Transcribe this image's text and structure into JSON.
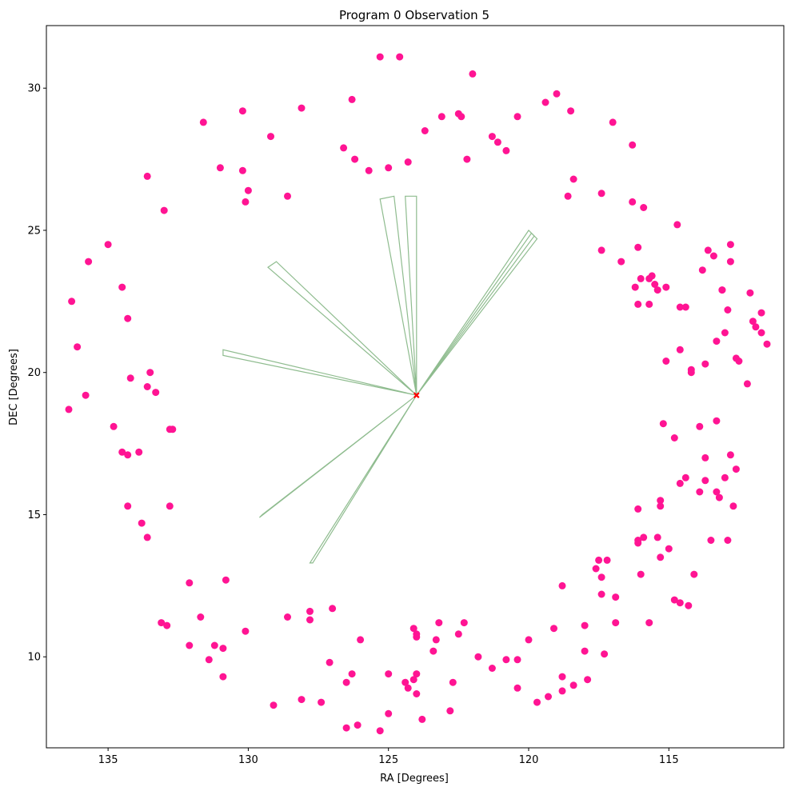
{
  "chart_data": {
    "type": "scatter",
    "title": "Program 0 Observation 5",
    "xlabel": "RA [Degrees]",
    "ylabel": "DEC [Degrees]",
    "xlim": [
      137.2,
      110.9
    ],
    "ylim": [
      6.8,
      32.2
    ],
    "x_inverted": true,
    "grid": false,
    "xticks": [
      135,
      130,
      125,
      120,
      115
    ],
    "yticks": [
      10,
      15,
      20,
      25,
      30
    ],
    "colors": {
      "points": "#ff1493",
      "fov": "#8fbc8f",
      "target": "#ff0000"
    },
    "target": {
      "ra": 124.0,
      "dec": 19.2
    },
    "points": [
      [
        136.4,
        18.7
      ],
      [
        136.3,
        22.5
      ],
      [
        136.1,
        20.9
      ],
      [
        135.8,
        19.2
      ],
      [
        135.7,
        23.9
      ],
      [
        135.0,
        24.5
      ],
      [
        134.8,
        18.1
      ],
      [
        134.5,
        23.0
      ],
      [
        134.5,
        17.2
      ],
      [
        134.3,
        17.1
      ],
      [
        134.3,
        21.9
      ],
      [
        134.3,
        15.3
      ],
      [
        134.2,
        19.8
      ],
      [
        133.9,
        17.2
      ],
      [
        133.8,
        14.7
      ],
      [
        133.6,
        14.2
      ],
      [
        133.6,
        19.5
      ],
      [
        133.5,
        20.0
      ],
      [
        133.6,
        26.9
      ],
      [
        133.3,
        19.3
      ],
      [
        132.8,
        15.3
      ],
      [
        132.8,
        18.0
      ],
      [
        132.7,
        18.0
      ],
      [
        133.0,
        25.7
      ],
      [
        133.1,
        11.2
      ],
      [
        132.9,
        11.1
      ],
      [
        132.1,
        12.6
      ],
      [
        132.1,
        10.4
      ],
      [
        131.7,
        11.4
      ],
      [
        131.6,
        28.8
      ],
      [
        131.4,
        9.9
      ],
      [
        131.2,
        10.4
      ],
      [
        130.9,
        10.3
      ],
      [
        130.9,
        9.3
      ],
      [
        131.0,
        27.2
      ],
      [
        130.8,
        12.7
      ],
      [
        130.2,
        29.2
      ],
      [
        130.2,
        27.1
      ],
      [
        130.0,
        26.4
      ],
      [
        130.1,
        26.0
      ],
      [
        130.1,
        10.9
      ],
      [
        129.2,
        28.3
      ],
      [
        129.1,
        8.3
      ],
      [
        128.6,
        11.4
      ],
      [
        128.6,
        26.2
      ],
      [
        128.1,
        29.3
      ],
      [
        128.1,
        8.5
      ],
      [
        127.8,
        11.6
      ],
      [
        127.8,
        11.3
      ],
      [
        127.4,
        8.4
      ],
      [
        127.1,
        9.8
      ],
      [
        127.0,
        11.7
      ],
      [
        126.6,
        27.9
      ],
      [
        126.5,
        9.1
      ],
      [
        126.5,
        7.5
      ],
      [
        126.3,
        29.6
      ],
      [
        126.3,
        9.4
      ],
      [
        126.2,
        27.5
      ],
      [
        126.1,
        7.6
      ],
      [
        126.0,
        10.6
      ],
      [
        125.7,
        27.1
      ],
      [
        125.3,
        31.1
      ],
      [
        125.3,
        7.4
      ],
      [
        125.0,
        27.2
      ],
      [
        125.0,
        9.4
      ],
      [
        125.0,
        8.0
      ],
      [
        124.6,
        31.1
      ],
      [
        124.3,
        27.4
      ],
      [
        124.4,
        9.1
      ],
      [
        124.3,
        8.9
      ],
      [
        124.1,
        11.0
      ],
      [
        124.1,
        9.2
      ],
      [
        124.0,
        10.7
      ],
      [
        124.0,
        9.4
      ],
      [
        124.0,
        8.7
      ],
      [
        124.0,
        10.8
      ],
      [
        123.8,
        7.8
      ],
      [
        123.7,
        28.5
      ],
      [
        123.4,
        10.2
      ],
      [
        123.3,
        10.6
      ],
      [
        123.2,
        11.2
      ],
      [
        123.1,
        29.0
      ],
      [
        122.8,
        8.1
      ],
      [
        122.7,
        9.1
      ],
      [
        122.5,
        29.1
      ],
      [
        122.4,
        29.0
      ],
      [
        122.5,
        10.8
      ],
      [
        122.3,
        11.2
      ],
      [
        122.2,
        27.5
      ],
      [
        122.0,
        30.5
      ],
      [
        121.8,
        10.0
      ],
      [
        121.3,
        28.3
      ],
      [
        121.3,
        9.6
      ],
      [
        121.1,
        28.1
      ],
      [
        120.8,
        27.8
      ],
      [
        120.8,
        9.9
      ],
      [
        120.4,
        29.0
      ],
      [
        120.4,
        9.9
      ],
      [
        120.4,
        8.9
      ],
      [
        120.0,
        10.6
      ],
      [
        119.7,
        8.4
      ],
      [
        119.4,
        29.5
      ],
      [
        119.3,
        8.6
      ],
      [
        119.1,
        11.0
      ],
      [
        119.0,
        29.8
      ],
      [
        118.8,
        8.8
      ],
      [
        118.8,
        12.5
      ],
      [
        118.8,
        9.3
      ],
      [
        118.6,
        26.2
      ],
      [
        118.5,
        29.2
      ],
      [
        118.4,
        26.8
      ],
      [
        118.4,
        9.0
      ],
      [
        118.0,
        11.1
      ],
      [
        118.0,
        10.2
      ],
      [
        117.9,
        9.2
      ],
      [
        117.6,
        13.1
      ],
      [
        117.5,
        13.4
      ],
      [
        117.4,
        26.3
      ],
      [
        117.4,
        24.3
      ],
      [
        117.4,
        12.8
      ],
      [
        117.4,
        12.2
      ],
      [
        117.3,
        10.1
      ],
      [
        117.2,
        13.4
      ],
      [
        117.0,
        28.8
      ],
      [
        116.9,
        12.1
      ],
      [
        116.9,
        11.2
      ],
      [
        116.7,
        23.9
      ],
      [
        116.3,
        28.0
      ],
      [
        116.3,
        26.0
      ],
      [
        116.2,
        23.0
      ],
      [
        116.1,
        22.4
      ],
      [
        116.1,
        24.4
      ],
      [
        116.0,
        23.3
      ],
      [
        116.1,
        15.2
      ],
      [
        116.1,
        14.1
      ],
      [
        116.1,
        14.0
      ],
      [
        116.0,
        12.9
      ],
      [
        115.9,
        14.2
      ],
      [
        115.9,
        25.8
      ],
      [
        115.7,
        23.3
      ],
      [
        115.6,
        23.4
      ],
      [
        115.5,
        23.1
      ],
      [
        115.7,
        22.4
      ],
      [
        115.7,
        11.2
      ],
      [
        115.4,
        22.9
      ],
      [
        115.4,
        14.2
      ],
      [
        115.3,
        15.5
      ],
      [
        115.3,
        15.3
      ],
      [
        115.3,
        13.5
      ],
      [
        115.2,
        18.2
      ],
      [
        115.1,
        23.0
      ],
      [
        115.1,
        20.4
      ],
      [
        115.0,
        13.8
      ],
      [
        114.8,
        12.0
      ],
      [
        114.8,
        17.7
      ],
      [
        114.7,
        25.2
      ],
      [
        114.6,
        11.9
      ],
      [
        114.6,
        20.8
      ],
      [
        114.6,
        16.1
      ],
      [
        114.6,
        22.3
      ],
      [
        114.4,
        16.3
      ],
      [
        114.4,
        22.3
      ],
      [
        114.3,
        11.8
      ],
      [
        114.2,
        20.1
      ],
      [
        114.2,
        20.0
      ],
      [
        114.1,
        12.9
      ],
      [
        113.9,
        15.8
      ],
      [
        113.9,
        18.1
      ],
      [
        113.8,
        23.6
      ],
      [
        113.7,
        17.0
      ],
      [
        113.7,
        16.2
      ],
      [
        113.7,
        20.3
      ],
      [
        113.6,
        24.3
      ],
      [
        113.5,
        14.1
      ],
      [
        113.4,
        24.1
      ],
      [
        113.3,
        18.3
      ],
      [
        113.3,
        21.1
      ],
      [
        113.3,
        15.8
      ],
      [
        113.2,
        15.6
      ],
      [
        113.1,
        22.9
      ],
      [
        113.1,
        22.9
      ],
      [
        113.0,
        16.3
      ],
      [
        113.0,
        21.4
      ],
      [
        112.9,
        14.1
      ],
      [
        112.9,
        22.2
      ],
      [
        112.8,
        24.5
      ],
      [
        112.8,
        23.9
      ],
      [
        112.8,
        17.1
      ],
      [
        112.7,
        15.3
      ],
      [
        112.6,
        16.6
      ],
      [
        112.6,
        20.5
      ],
      [
        112.5,
        20.4
      ],
      [
        112.2,
        19.6
      ],
      [
        112.1,
        22.8
      ],
      [
        112.0,
        21.8
      ],
      [
        111.9,
        21.6
      ],
      [
        111.7,
        22.1
      ],
      [
        111.7,
        21.4
      ],
      [
        111.5,
        21.0
      ]
    ],
    "fovs": [
      [
        [
          124.0,
          19.2
        ],
        [
          124.0,
          26.2
        ],
        [
          124.4,
          26.2
        ],
        [
          124.0,
          19.2
        ]
      ],
      [
        [
          124.0,
          19.2
        ],
        [
          125.3,
          26.1
        ],
        [
          124.8,
          26.2
        ],
        [
          124.0,
          19.2
        ]
      ],
      [
        [
          124.0,
          19.2
        ],
        [
          119.7,
          24.7
        ],
        [
          119.9,
          24.9
        ],
        [
          124.0,
          19.2
        ]
      ],
      [
        [
          124.0,
          19.2
        ],
        [
          120.0,
          25.0
        ],
        [
          119.8,
          24.8
        ],
        [
          124.0,
          19.2
        ]
      ],
      [
        [
          124.0,
          19.2
        ],
        [
          129.3,
          23.7
        ],
        [
          129.0,
          23.9
        ],
        [
          124.0,
          19.2
        ]
      ],
      [
        [
          124.0,
          19.2
        ],
        [
          130.9,
          20.8
        ],
        [
          130.9,
          20.6
        ],
        [
          124.0,
          19.2
        ]
      ],
      [
        [
          124.0,
          19.2
        ],
        [
          129.6,
          14.9
        ],
        [
          129.5,
          15.0
        ],
        [
          124.0,
          19.2
        ]
      ],
      [
        [
          124.0,
          19.2
        ],
        [
          127.8,
          13.3
        ],
        [
          127.7,
          13.3
        ],
        [
          124.0,
          19.2
        ]
      ]
    ]
  }
}
